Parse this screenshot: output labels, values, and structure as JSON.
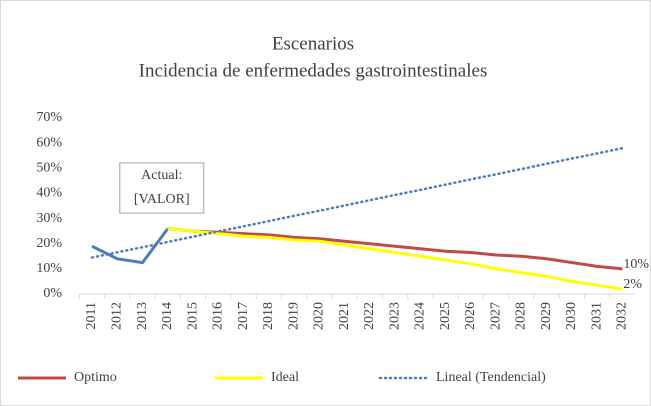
{
  "chart_data": {
    "type": "line",
    "title": [
      "Escenarios",
      "Incidencia de enfermedades gastrointestinales"
    ],
    "categories": [
      "2011",
      "2012",
      "2013",
      "2014",
      "2015",
      "2016",
      "2017",
      "2018",
      "2019",
      "2020",
      "2021",
      "2022",
      "2023",
      "2024",
      "2025",
      "2026",
      "2027",
      "2028",
      "2029",
      "2030",
      "2031",
      "2032"
    ],
    "series": [
      {
        "name": null,
        "color": "#4a7ebb",
        "style": "solid",
        "values": [
          19,
          14,
          12.5,
          26,
          null,
          null,
          null,
          null,
          null,
          null,
          null,
          null,
          null,
          null,
          null,
          null,
          null,
          null,
          null,
          null,
          null,
          null
        ]
      },
      {
        "name": "Optimo",
        "color": "#be4b48",
        "style": "solid",
        "values": [
          null,
          null,
          null,
          26,
          25,
          24.5,
          24,
          23.5,
          22.5,
          22,
          21,
          20,
          19,
          18,
          17,
          16.5,
          15.5,
          15,
          14,
          12.5,
          11,
          10
        ],
        "value_labels": [
          null,
          null,
          null,
          null,
          null,
          null,
          null,
          null,
          null,
          null,
          null,
          null,
          null,
          null,
          null,
          null,
          null,
          null,
          null,
          null,
          null,
          "10%"
        ]
      },
      {
        "name": "Ideal",
        "color": "#ffff00",
        "style": "solid",
        "values": [
          null,
          null,
          null,
          26,
          25,
          24,
          23,
          22.5,
          21.5,
          21,
          19.5,
          18,
          16.5,
          15,
          13.5,
          12,
          10,
          8.5,
          7,
          5,
          3.5,
          2
        ],
        "value_labels": [
          null,
          null,
          null,
          null,
          null,
          null,
          null,
          null,
          null,
          null,
          null,
          null,
          null,
          null,
          null,
          null,
          null,
          null,
          null,
          null,
          null,
          "2%"
        ]
      },
      {
        "name": "Lineal (Tendencial)",
        "color": "#4a7ebb",
        "style": "dotted",
        "values": [
          14.5,
          16.6,
          18.6,
          20.7,
          22.8,
          24.9,
          26.9,
          29.0,
          31.1,
          33.1,
          35.2,
          37.3,
          39.4,
          41.4,
          43.5,
          45.6,
          47.6,
          49.7,
          51.8,
          53.9,
          55.9,
          58.0
        ]
      }
    ],
    "annotation": {
      "lines": [
        "Actual:",
        "[VALOR]"
      ],
      "category": 3
    },
    "ylim": [
      0,
      70
    ],
    "yticks": [
      {
        "value": 0,
        "label": "0%"
      },
      {
        "value": 10,
        "label": "10%"
      },
      {
        "value": 20,
        "label": "20%"
      },
      {
        "value": 30,
        "label": "30%"
      },
      {
        "value": 40,
        "label": "40%"
      },
      {
        "value": 50,
        "label": "50%"
      },
      {
        "value": 60,
        "label": "60%"
      },
      {
        "value": 70,
        "label": "70%"
      }
    ],
    "grid": false,
    "legend": "bottom"
  }
}
